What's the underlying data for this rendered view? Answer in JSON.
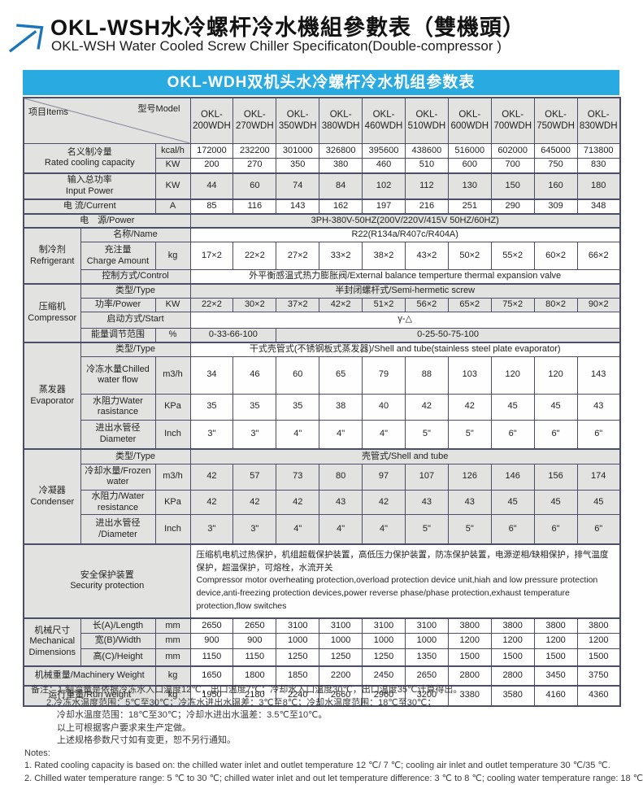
{
  "page": {
    "title_zh": "OKL-WSH水冷螺杆冷水機組參數表（雙機頭）",
    "title_en": "OKL-WSH Water Cooled Screw Chiller Specificaton(Double-compressor )"
  },
  "logo": {
    "label": "arrow-up-right-logo",
    "color": "#1b75bc"
  },
  "table": {
    "banner": "OKL-WDH双机头水冷螺杆冷水机组参数表",
    "banner_bg": "#29abe2",
    "banner_text_color": "#ffffff",
    "border_color": "#4c4d68",
    "shade_color": "#e2e2e1",
    "header": {
      "items_label": "项目Items",
      "model_label": "型号Model"
    },
    "models": {
      "prefix": "OKL-",
      "codes": [
        "200WDH",
        "270WDH",
        "350WDH",
        "380WDH",
        "460WDH",
        "510WDH",
        "600WDH",
        "700WDH",
        "750WDH",
        "830WDH"
      ]
    },
    "rows": [
      {
        "n": "row-rated-cooling-kcal",
        "h": 18,
        "cells": [
          {
            "t": "名义制冷量\nRated cooling capacity",
            "cs": 2,
            "rs": 2,
            "c": "lbl",
            "n": "rated-cooling-label"
          },
          {
            "t": "kcal/h",
            "c": "unit",
            "n": "unit-kcalh"
          }
        ],
        "vals": [
          "172000",
          "232200",
          "301000",
          "326800",
          "395600",
          "438600",
          "516000",
          "602000",
          "645000",
          "713800"
        ],
        "vc": "d"
      },
      {
        "n": "row-rated-cooling-kw",
        "h": 18,
        "cells": [
          {
            "t": "KW",
            "c": "unit",
            "n": "unit-kw"
          }
        ],
        "vals": [
          "200",
          "270",
          "350",
          "380",
          "460",
          "510",
          "600",
          "700",
          "750",
          "830"
        ],
        "vc": "d"
      },
      {
        "n": "row-input-power",
        "h": 32,
        "tt": true,
        "cells": [
          {
            "t": "输入总功率\nInput Power",
            "cs": 2,
            "c": "lbl",
            "n": "input-power-label"
          },
          {
            "t": "KW",
            "c": "unit",
            "n": "unit-kw"
          }
        ],
        "vals": [
          "44",
          "60",
          "74",
          "84",
          "102",
          "112",
          "130",
          "150",
          "160",
          "180"
        ],
        "vc": "d g"
      },
      {
        "n": "row-current",
        "h": 18,
        "tt": true,
        "cells": [
          {
            "t": "电 流/Current",
            "cs": 2,
            "c": "lbl",
            "n": "current-label"
          },
          {
            "t": "A",
            "c": "unit",
            "n": "unit-a"
          }
        ],
        "vals": [
          "85",
          "116",
          "143",
          "162",
          "197",
          "216",
          "251",
          "290",
          "309",
          "348"
        ],
        "vc": "d"
      },
      {
        "n": "row-power-supply",
        "h": 17,
        "tt": true,
        "cells": [
          {
            "t": "电　源/Power",
            "cs": 3,
            "c": "lbl",
            "n": "power-supply-label"
          },
          {
            "t": "3PH-380V-50HZ(200V/220V/415V  50HZ/60HZ)",
            "cs": 10,
            "c": "d g",
            "n": "power-supply-value"
          }
        ]
      },
      {
        "n": "row-refrigerant-name",
        "h": 16,
        "tt": true,
        "cells": [
          {
            "t": "制冷剂\nRefrigerant",
            "rs": 3,
            "c": "cat",
            "n": "refrigerant-category"
          },
          {
            "t": "名称/Name",
            "cs": 2,
            "c": "lbl",
            "n": "refrigerant-name-label"
          },
          {
            "t": "R22(R134a/R407c/R404A)",
            "cs": 10,
            "c": "d",
            "n": "refrigerant-name-value"
          }
        ]
      },
      {
        "n": "row-charge-amount",
        "h": 34,
        "cells": [
          {
            "t": "充注量\nCharge Amount",
            "c": "lbl",
            "n": "charge-amount-label"
          },
          {
            "t": "kg",
            "c": "unit",
            "n": "unit-kg"
          }
        ],
        "vals": [
          "17×2",
          "22×2",
          "27×2",
          "33×2",
          "38×2",
          "43×2",
          "50×2",
          "55×2",
          "60×2",
          "66×2"
        ],
        "vc": "d"
      },
      {
        "n": "row-control",
        "h": 17,
        "cells": [
          {
            "t": "控制方式/Control",
            "cs": 2,
            "c": "lbl",
            "n": "control-label"
          },
          {
            "t": "外平衡感温式热力膨胀阀/External balance temperture thermal expansion valve",
            "cs": 10,
            "c": "d",
            "n": "control-value"
          }
        ]
      },
      {
        "n": "row-compressor-type",
        "h": 17,
        "tt": true,
        "cells": [
          {
            "t": "压缩机\nCompressor",
            "rs": 4,
            "c": "cat",
            "n": "compressor-category"
          },
          {
            "t": "类型/Type",
            "cs": 2,
            "c": "lbl",
            "n": "compressor-type-label"
          },
          {
            "t": "半封闭螺杆式/Semi-hermetic screw",
            "cs": 10,
            "c": "d g",
            "n": "compressor-type-value"
          }
        ]
      },
      {
        "n": "row-compressor-power",
        "h": 17,
        "cells": [
          {
            "t": "功率/Power",
            "c": "lbl",
            "n": "compressor-power-label"
          },
          {
            "t": "KW",
            "c": "unit",
            "n": "unit-kw"
          }
        ],
        "vals": [
          "22×2",
          "30×2",
          "37×2",
          "42×2",
          "51×2",
          "56×2",
          "65×2",
          "75×2",
          "80×2",
          "90×2"
        ],
        "vc": "d g"
      },
      {
        "n": "row-start-mode",
        "h": 20,
        "cells": [
          {
            "t": "启动方式/Start",
            "cs": 2,
            "c": "lbl",
            "n": "start-mode-label"
          },
          {
            "t": "γ-△",
            "cs": 10,
            "c": "d",
            "n": "start-mode-value"
          }
        ]
      },
      {
        "n": "row-energy-range",
        "h": 18,
        "cells": [
          {
            "t": "能量调节范围",
            "c": "lbl",
            "n": "energy-range-label"
          },
          {
            "t": "%",
            "c": "unit",
            "n": "unit-percent"
          },
          {
            "t": "0-33-66-100",
            "cs": 2,
            "c": "d g",
            "n": "energy-range-small"
          },
          {
            "t": "0-25-50-75-100",
            "cs": 8,
            "c": "d g",
            "n": "energy-range-large"
          }
        ]
      },
      {
        "n": "row-evaporator-type",
        "h": 17,
        "tt": true,
        "cells": [
          {
            "t": "蒸发器\nEvaporator",
            "rs": 4,
            "c": "cat",
            "n": "evaporator-category"
          },
          {
            "t": "类型/Type",
            "cs": 2,
            "c": "lbl",
            "n": "evaporator-type-label"
          },
          {
            "t": "干式壳管式(不锈钢板式蒸发器)/Shell and tube(stainless steel plate evaporator)",
            "cs": 10,
            "c": "d",
            "n": "evaporator-type-value"
          }
        ]
      },
      {
        "n": "row-chilled-water-flow",
        "h": 46,
        "cells": [
          {
            "t": "冷冻水量Chilled\nwater flow",
            "c": "lbl",
            "n": "chilled-water-flow-label"
          },
          {
            "t": "m3/h",
            "c": "unit",
            "n": "unit-m3h"
          }
        ],
        "vals": [
          "34",
          "46",
          "60",
          "65",
          "79",
          "88",
          "103",
          "120",
          "120",
          "143"
        ],
        "vc": "d"
      },
      {
        "n": "row-evap-water-resistance",
        "h": 32,
        "cells": [
          {
            "t": "水阻力Water\nrasistance",
            "c": "lbl",
            "n": "evap-water-resistance-label"
          },
          {
            "t": "KPa",
            "c": "unit",
            "n": "unit-kpa"
          }
        ],
        "vals": [
          "35",
          "35",
          "35",
          "38",
          "40",
          "42",
          "42",
          "45",
          "45",
          "43"
        ],
        "vc": "d"
      },
      {
        "n": "row-evap-diameter",
        "h": 36,
        "cells": [
          {
            "t": "进出水管径\nDiameter",
            "c": "lbl",
            "n": "evap-diameter-label"
          },
          {
            "t": "Inch",
            "c": "unit",
            "n": "unit-inch"
          }
        ],
        "vals": [
          "3\"",
          "3\"",
          "4\"",
          "4\"",
          "4\"",
          "5\"",
          "5\"",
          "6\"",
          "6\"",
          "6\""
        ],
        "vc": "d"
      },
      {
        "n": "row-condenser-type",
        "h": 18,
        "tt": true,
        "cells": [
          {
            "t": "冷凝器\nCondenser",
            "rs": 4,
            "c": "cat",
            "n": "condenser-category"
          },
          {
            "t": "类型/Type",
            "cs": 2,
            "c": "lbl",
            "n": "condenser-type-label"
          },
          {
            "t": "壳管式/Shell and tube",
            "cs": 10,
            "c": "d g",
            "n": "condenser-type-value"
          }
        ]
      },
      {
        "n": "row-frozen-water",
        "h": 32,
        "cells": [
          {
            "t": "冷却水量/Frozen\nwater",
            "c": "lbl",
            "n": "frozen-water-label"
          },
          {
            "t": "m3/h",
            "c": "unit",
            "n": "unit-m3h"
          }
        ],
        "vals": [
          "42",
          "57",
          "73",
          "80",
          "97",
          "107",
          "126",
          "146",
          "156",
          "174"
        ],
        "vc": "d g"
      },
      {
        "n": "row-cond-water-resistance",
        "h": 30,
        "cells": [
          {
            "t": "水阻力/Water\nresistance",
            "c": "lbl",
            "n": "cond-water-resistance-label"
          },
          {
            "t": "KPa",
            "c": "unit",
            "n": "unit-kpa"
          }
        ],
        "vals": [
          "42",
          "42",
          "42",
          "43",
          "42",
          "43",
          "43",
          "45",
          "45",
          "45"
        ],
        "vc": "d g"
      },
      {
        "n": "row-cond-diameter",
        "h": 36,
        "cells": [
          {
            "t": "进出水管径\n/Diameter",
            "c": "lbl",
            "n": "cond-diameter-label"
          },
          {
            "t": "Inch",
            "c": "unit",
            "n": "unit-inch"
          }
        ],
        "vals": [
          "3\"",
          "3\"",
          "4\"",
          "4\"",
          "4\"",
          "5\"",
          "5\"",
          "6\"",
          "6\"",
          "6\""
        ],
        "vc": "d g"
      },
      {
        "n": "row-security",
        "h": 91,
        "tt": true,
        "cells": [
          {
            "t": "安全保护装置\nSecurity protection",
            "cs": 3,
            "c": "cat",
            "n": "security-label"
          },
          {
            "t": "压缩机电机过热保护，机组超载保护装置，高低压力保护装置，防冻保护装置，电源逆相/缺相保护，排气温度保护，超温保护，可熔栓，水流开关\nCompressor motor overheating protection,overload protection device unit,hiah and low pressure protection device,anti-freezing protection devices,power reverse phase/phase protection,exhaust temperature protection,flow switches",
            "cs": 10,
            "c": "d left",
            "n": "security-value"
          }
        ]
      },
      {
        "n": "row-length",
        "h": 19,
        "tt": true,
        "cells": [
          {
            "t": "机械尺寸\nMechanical\nDimensions",
            "rs": 3,
            "c": "cat",
            "n": "dimensions-category"
          },
          {
            "t": "长(A)/Length",
            "c": "lbl",
            "n": "length-label"
          },
          {
            "t": "mm",
            "c": "unit",
            "n": "unit-mm"
          }
        ],
        "vals": [
          "2650",
          "2650",
          "3100",
          "3100",
          "3100",
          "3100",
          "3800",
          "3800",
          "3800",
          "3800"
        ],
        "vc": "d"
      },
      {
        "n": "row-width",
        "h": 19,
        "cells": [
          {
            "t": "宽(B)/Width",
            "c": "lbl",
            "n": "width-label"
          },
          {
            "t": "mm",
            "c": "unit",
            "n": "unit-mm"
          }
        ],
        "vals": [
          "900",
          "900",
          "1000",
          "1000",
          "1000",
          "1000",
          "1200",
          "1200",
          "1200",
          "1200"
        ],
        "vc": "d"
      },
      {
        "n": "row-height",
        "h": 21,
        "cells": [
          {
            "t": "高(C)/Height",
            "c": "lbl",
            "n": "height-label"
          },
          {
            "t": "mm",
            "c": "unit",
            "n": "unit-mm"
          }
        ],
        "vals": [
          "1150",
          "1150",
          "1250",
          "1250",
          "1250",
          "1350",
          "1500",
          "1500",
          "1500",
          "1500"
        ],
        "vc": "d"
      },
      {
        "n": "row-machinery-weight",
        "h": 24,
        "tt": true,
        "cells": [
          {
            "t": "机械重量/Machinery Weight",
            "cs": 2,
            "c": "lbl",
            "n": "machinery-weight-label"
          },
          {
            "t": "kg",
            "c": "unit",
            "n": "unit-kg"
          }
        ],
        "vals": [
          "1650",
          "1800",
          "1850",
          "2200",
          "2450",
          "2650",
          "2800",
          "2800",
          "3450",
          "3750"
        ],
        "vc": "d"
      },
      {
        "n": "row-run-weight",
        "h": 25,
        "tt": true,
        "cells": [
          {
            "t": "运行重量/Run weight",
            "cs": 2,
            "c": "lbl",
            "n": "run-weight-label"
          },
          {
            "t": "kg",
            "c": "unit",
            "n": "unit-kg"
          }
        ],
        "vals": [
          "1950",
          "2180",
          "2240",
          "2660",
          "2960",
          "3200",
          "3380",
          "3580",
          "4160",
          "4360"
        ],
        "vc": "d"
      }
    ]
  },
  "notes": {
    "lines": [
      {
        "t": "备注：1.制冷量是依据冷冻水入口温度12℃，出口温度7℃；冷却水入口温度30℃，出口温度35℃计算得出。",
        "ind": 1
      },
      {
        "t": "2.冷冻水温度范围：5℃至30℃；冷冻水进出水温差：3℃至8℃；冷却水温度范围：18℃至30℃；",
        "ind": 2
      },
      {
        "t": "冷却水温度范围：18℃至30℃；冷却水进出水温差：3.5℃至10℃。",
        "ind": 3
      },
      {
        "t": "以上可根据客户要求来生产定做。",
        "ind": 3
      },
      {
        "t": "上述规格参数尺寸如有变更，恕不另行通知。",
        "ind": 3
      },
      {
        "t": "Notes:",
        "ind": 0
      },
      {
        "t": "1. Rated cooling capacity is based on: the chilled water inlet and outlet temperature  12 ℃/ 7 ℃; cooling air inlet and outlet temperature  30 ℃/35 ℃.",
        "ind": 0
      },
      {
        "t": "2. Chilled water temperature range: 5 ℃ to 30 ℃; chilled water inlet and out let temperature  difference:  3 ℃ to 8 ℃; cooling water temperature  range: 18 ℃",
        "ind": 0
      }
    ]
  }
}
